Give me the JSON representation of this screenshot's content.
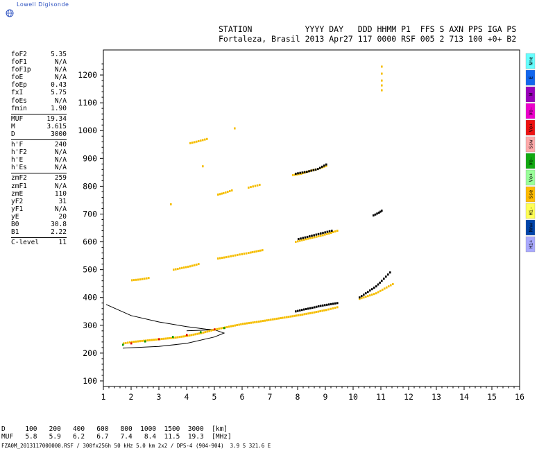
{
  "logo": {
    "text": "Lowell Digisonde",
    "icon": "globe-icon"
  },
  "header": {
    "line1": "STATION           YYYY DAY   DDD HHMM P1  FFS S AXN PPS IGA PS",
    "line2": "Fortaleza, Brasil 2013 Apr27 117 0000 RSF 005 2 713 100 +0+ B2"
  },
  "params": {
    "group1": [
      {
        "label": "foF2",
        "value": "5.35"
      },
      {
        "label": "foF1",
        "value": "N/A"
      },
      {
        "label": "foF1p",
        "value": "N/A"
      },
      {
        "label": "foE",
        "value": "N/A"
      },
      {
        "label": "foEp",
        "value": "0.43"
      },
      {
        "label": "fxI",
        "value": "5.75"
      },
      {
        "label": "foEs",
        "value": "N/A"
      },
      {
        "label": "fmin",
        "value": "1.90"
      }
    ],
    "group2": [
      {
        "label": "MUF",
        "value": "19.34"
      },
      {
        "label": "M",
        "value": "3.615"
      },
      {
        "label": "D",
        "value": "3000"
      }
    ],
    "group3": [
      {
        "label": "h'F",
        "value": "240"
      },
      {
        "label": "h'F2",
        "value": "N/A"
      },
      {
        "label": "h'E",
        "value": "N/A"
      },
      {
        "label": "h'Es",
        "value": "N/A"
      }
    ],
    "group4": [
      {
        "label": "zmF2",
        "value": "259"
      },
      {
        "label": "zmF1",
        "value": "N/A"
      },
      {
        "label": "zmE",
        "value": "110"
      },
      {
        "label": "yF2",
        "value": "31"
      },
      {
        "label": "yF1",
        "value": "N/A"
      },
      {
        "label": "yE",
        "value": "20"
      },
      {
        "label": "B0",
        "value": "30.8"
      },
      {
        "label": "B1",
        "value": "2.22"
      }
    ],
    "group5": [
      {
        "label": "C-level",
        "value": "11"
      }
    ]
  },
  "status_bar": [
    {
      "label": "Nne",
      "color": "#66ffff"
    },
    {
      "label": "E",
      "color": "#1166ee"
    },
    {
      "label": "W",
      "color": "#9900bb"
    },
    {
      "label": "Vo-",
      "color": "#ee00cc"
    },
    {
      "label": "Vo+",
      "color": "#ee1111"
    },
    {
      "label": "Ssw",
      "color": "#ffaaaa"
    },
    {
      "label": "Vo-",
      "color": "#11aa11"
    },
    {
      "label": "Vo+",
      "color": "#99ff99"
    },
    {
      "label": "Sse",
      "color": "#ffbb00"
    },
    {
      "label": "Hi-",
      "color": "#ffff55"
    },
    {
      "label": "Nnw",
      "color": "#0044aa"
    },
    {
      "label": "Hi+",
      "color": "#aaaaff"
    }
  ],
  "bottom": {
    "dist_row": "D     100   200   400   600   800  1000  1500  3000  [km]",
    "muf_row": "MUF   5.8   5.9   6.2   6.7   7.4   8.4  11.5  19.3  [MHz]",
    "footer": "FZA0M_2013117000000.RSF / 300fx256h 50 kHz 5.0 km 2x2 / DPS-4 (904-904)  3.9 S 321.6 E"
  },
  "chart_data": {
    "type": "scatter",
    "title": "",
    "xlabel": "",
    "ylabel": "",
    "xlim": [
      1,
      16
    ],
    "ylim": [
      80,
      1290
    ],
    "xticks": [
      1,
      2,
      3,
      4,
      5,
      6,
      7,
      8,
      9,
      10,
      11,
      12,
      13,
      14,
      15,
      16
    ],
    "yticks": [
      100,
      200,
      300,
      400,
      500,
      600,
      700,
      800,
      900,
      1000,
      1100,
      1200
    ],
    "grid": false,
    "traces": [
      {
        "color_key": "yellow",
        "x": [
          1.7,
          2.0,
          2.5,
          3.0,
          3.5,
          4.0,
          4.5,
          5.0,
          5.5,
          6.0,
          6.5,
          7.0,
          7.5,
          8.0,
          8.5,
          9.0,
          9.4
        ],
        "y": [
          235,
          240,
          245,
          250,
          255,
          262,
          272,
          285,
          295,
          305,
          312,
          320,
          328,
          336,
          345,
          355,
          365
        ]
      },
      {
        "color_key": "black",
        "x": [
          7.9,
          8.2,
          8.5,
          8.8,
          9.1,
          9.4
        ],
        "y": [
          350,
          357,
          363,
          370,
          375,
          380
        ]
      },
      {
        "color_key": "yellow",
        "x": [
          10.2,
          10.5,
          10.8,
          11.1,
          11.4
        ],
        "y": [
          395,
          405,
          415,
          432,
          448
        ]
      },
      {
        "color_key": "black",
        "x": [
          10.2,
          10.5,
          10.8,
          11.0,
          11.3
        ],
        "y": [
          400,
          420,
          440,
          460,
          490
        ]
      },
      {
        "color_key": "yellow",
        "x": [
          5.1,
          5.4,
          5.8,
          6.2,
          6.7
        ],
        "y": [
          540,
          545,
          553,
          560,
          570
        ]
      },
      {
        "color_key": "yellow",
        "x": [
          7.9,
          8.2,
          8.5,
          8.8,
          9.1,
          9.4
        ],
        "y": [
          600,
          608,
          615,
          622,
          630,
          640
        ]
      },
      {
        "color_key": "black",
        "x": [
          8.0,
          8.4,
          8.8,
          9.2
        ],
        "y": [
          610,
          620,
          630,
          640
        ]
      },
      {
        "color_key": "yellow",
        "x": [
          3.5,
          3.8,
          4.1,
          4.4
        ],
        "y": [
          500,
          506,
          512,
          520
        ]
      },
      {
        "color_key": "yellow",
        "x": [
          5.1,
          5.3,
          5.6
        ],
        "y": [
          770,
          775,
          785
        ]
      },
      {
        "color_key": "yellow",
        "x": [
          7.8,
          8.1,
          8.4,
          8.7,
          9.0
        ],
        "y": [
          840,
          845,
          855,
          862,
          873
        ]
      },
      {
        "color_key": "black",
        "x": [
          7.9,
          8.3,
          8.7,
          9.0
        ],
        "y": [
          845,
          852,
          862,
          878
        ]
      },
      {
        "color_key": "yellow",
        "x": [
          4.1,
          4.4,
          4.7
        ],
        "y": [
          955,
          962,
          970
        ]
      },
      {
        "color_key": "black",
        "x": [
          10.7,
          10.9,
          11.0
        ],
        "y": [
          695,
          705,
          712
        ]
      },
      {
        "color_key": "yellow",
        "x": [
          2.0,
          2.3,
          2.6
        ],
        "y": [
          462,
          465,
          470
        ]
      },
      {
        "color_key": "yellow",
        "x": [
          11.0,
          11.0,
          11.0
        ],
        "y": [
          1145,
          1180,
          1230
        ]
      },
      {
        "color_key": "yellow",
        "x": [
          6.2,
          6.6
        ],
        "y": [
          795,
          805
        ]
      },
      {
        "color_key": "yellow",
        "x": [
          5.7,
          3.4
        ],
        "y": [
          1008,
          735
        ]
      }
    ],
    "o_trace": {
      "x": [
        1.7,
        2.0,
        2.5,
        3.0,
        3.5,
        4.0,
        4.5,
        5.0,
        5.35
      ],
      "y": [
        230,
        235,
        242,
        250,
        258,
        265,
        275,
        285,
        290
      ]
    },
    "model_upper": {
      "x": [
        1.1,
        2.0,
        3.0,
        4.0,
        4.7,
        5.0
      ],
      "y": [
        375,
        335,
        312,
        295,
        286,
        284
      ]
    },
    "model_lower": {
      "x": [
        1.7,
        3.0,
        4.0,
        5.0,
        5.35,
        5.0,
        4.0
      ],
      "y": [
        218,
        224,
        235,
        258,
        272,
        284,
        280
      ]
    }
  }
}
